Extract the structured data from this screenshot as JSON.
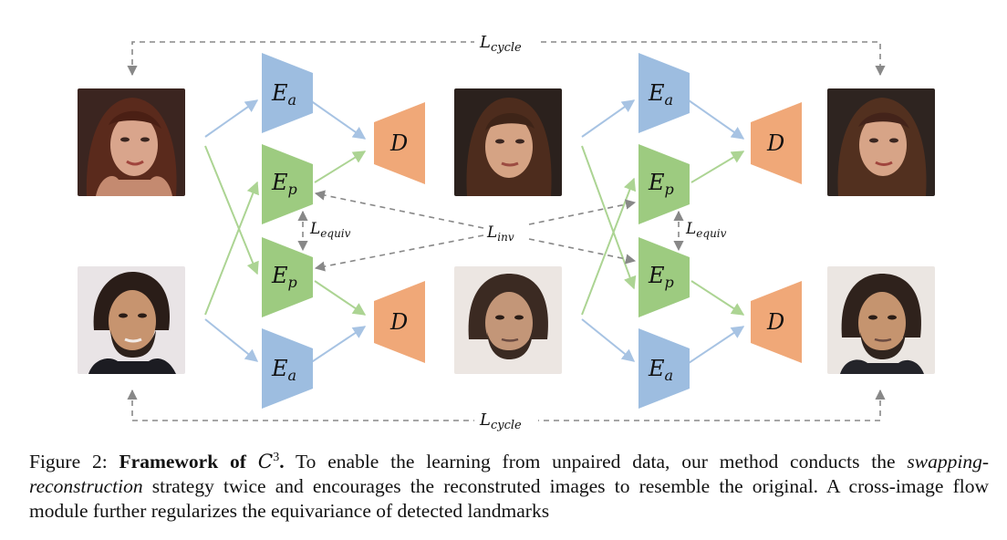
{
  "figure": {
    "encoder_appearance": "E",
    "encoder_appearance_sub": "a",
    "encoder_pose": "E",
    "encoder_pose_sub": "p",
    "decoder": "D",
    "loss_cycle": "L",
    "loss_cycle_sub": "cycle",
    "loss_equiv": "L",
    "loss_equiv_sub": "equiv",
    "loss_inv": "L",
    "loss_inv_sub": "inv",
    "colors": {
      "encoder_appearance": "#9dbde0",
      "encoder_pose": "#9dcb80",
      "decoder": "#f0a878",
      "arrow_appearance": "#a7c3e3",
      "arrow_pose": "#acd493",
      "arrow_loss": "#888888"
    }
  },
  "caption": {
    "prefix": "Figure 2: ",
    "bold": "Framework of ",
    "bold_math": "C",
    "bold_sup": "3",
    "bold_end": ".",
    "text1": " To enable the learning from unpaired data, our method conducts the ",
    "italic": "swapping-reconstruction",
    "text2": " strategy twice and encourages the reconstruted images to resemble the original. A cross-image flow module further regularizes the equivariance of detected landmarks"
  }
}
